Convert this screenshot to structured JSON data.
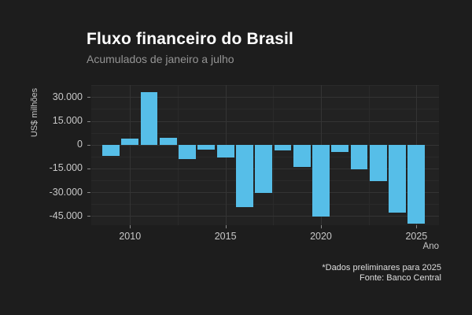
{
  "header": {
    "title": "Fluxo financeiro do Brasil",
    "subtitle": "Acumulados de janeiro a julho"
  },
  "footer": {
    "note": "*Dados preliminares para 2025",
    "source": "Fonte: Banco Central"
  },
  "chart_data": {
    "type": "bar",
    "title": "Fluxo financeiro do Brasil",
    "subtitle": "Acumulados de janeiro a julho",
    "xlabel": "Ano",
    "ylabel": "US$ milhões",
    "categories": [
      2009,
      2010,
      2011,
      2012,
      2013,
      2014,
      2015,
      2016,
      2017,
      2018,
      2019,
      2020,
      2021,
      2022,
      2023,
      2024,
      2025
    ],
    "values": [
      -7000,
      3600,
      33000,
      4300,
      -9300,
      -3000,
      -8000,
      -39200,
      -30300,
      -3700,
      -14300,
      -45300,
      -4700,
      -15400,
      -23200,
      -43000,
      -49700
    ],
    "x_ticks": [
      2010,
      2015,
      2020,
      2025
    ],
    "x_tick_labels": [
      "2010",
      "2015",
      "2020",
      "2025"
    ],
    "x_minor_ticks": [
      2012.5,
      2017.5,
      2022.5
    ],
    "y_ticks": [
      30000,
      15000,
      0,
      -15000,
      -30000,
      -45000
    ],
    "y_tick_labels": [
      "30.000",
      "15.000",
      "0",
      "-15.000",
      "-30.000",
      "-45.000"
    ],
    "y_minor_ticks": [
      37500,
      22500,
      7500,
      -7500,
      -22500,
      -37500
    ],
    "xlim": [
      2007.97,
      2026.18
    ],
    "ylim": [
      -50850,
      37650
    ],
    "grid": true,
    "legend_position": "none",
    "bar_color": "#56BEE8",
    "panel_background": "#222222",
    "outer_background": "#1d1d1d"
  }
}
